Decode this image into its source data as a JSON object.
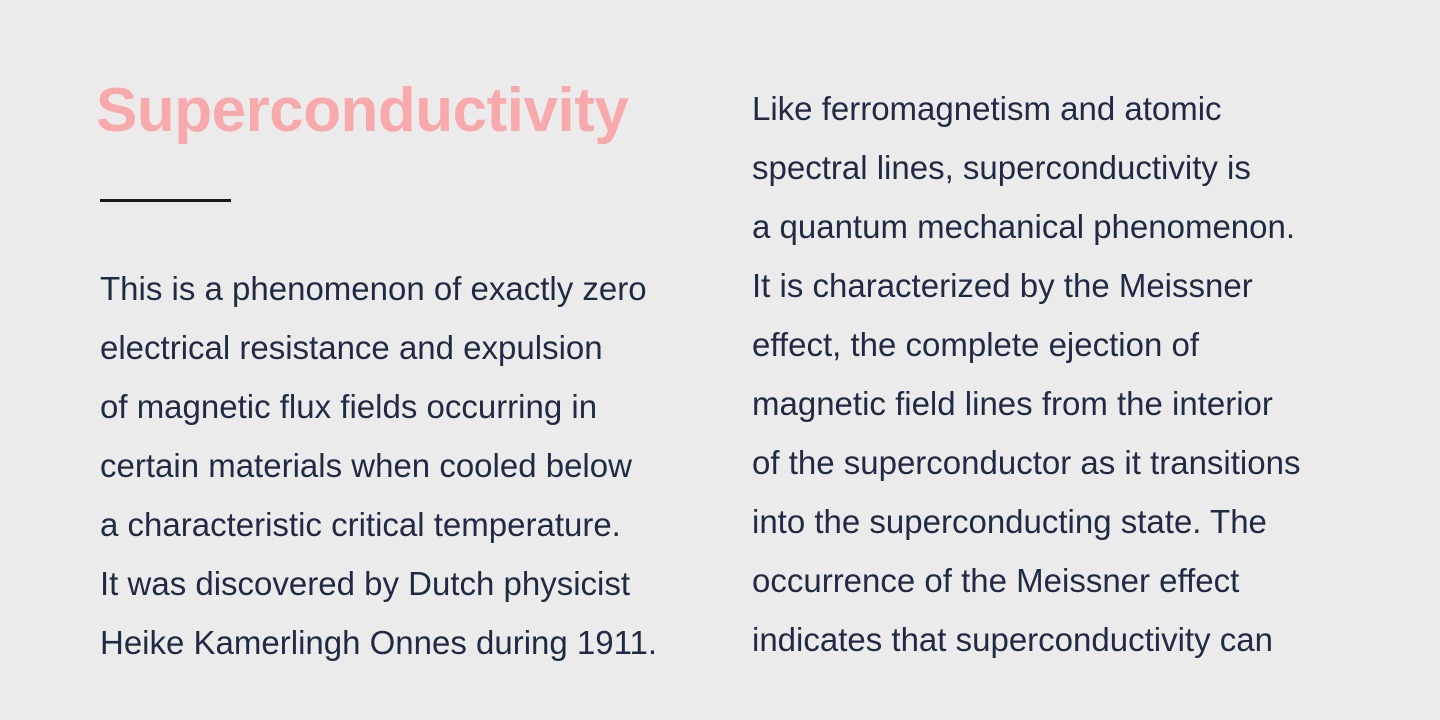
{
  "colors": {
    "page_background": "#ebebeb",
    "title": "#f8a9ac",
    "body_text": "#1f2a44",
    "rule": "#191919"
  },
  "article": {
    "title": "Superconductivity",
    "left_column": {
      "lines": [
        "This is a phenomenon of exactly zero",
        "electrical resistance and expulsion",
        "of magnetic flux fields occurring in",
        "certain materials when cooled below",
        "a characteristic critical temperature.",
        "It was discovered by Dutch physicist",
        "Heike Kamerlingh Onnes during 1911."
      ]
    },
    "right_column": {
      "lines": [
        "Like ferromagnetism and atomic",
        "spectral lines, superconductivity is",
        "a quantum mechanical phenomenon.",
        "It is characterized by the Meissner",
        "effect, the complete ejection of",
        "magnetic field lines from the interior",
        "of the superconductor as it transitions",
        "into the superconducting state. The",
        "occurrence of the Meissner effect",
        "indicates that superconductivity can"
      ]
    }
  }
}
